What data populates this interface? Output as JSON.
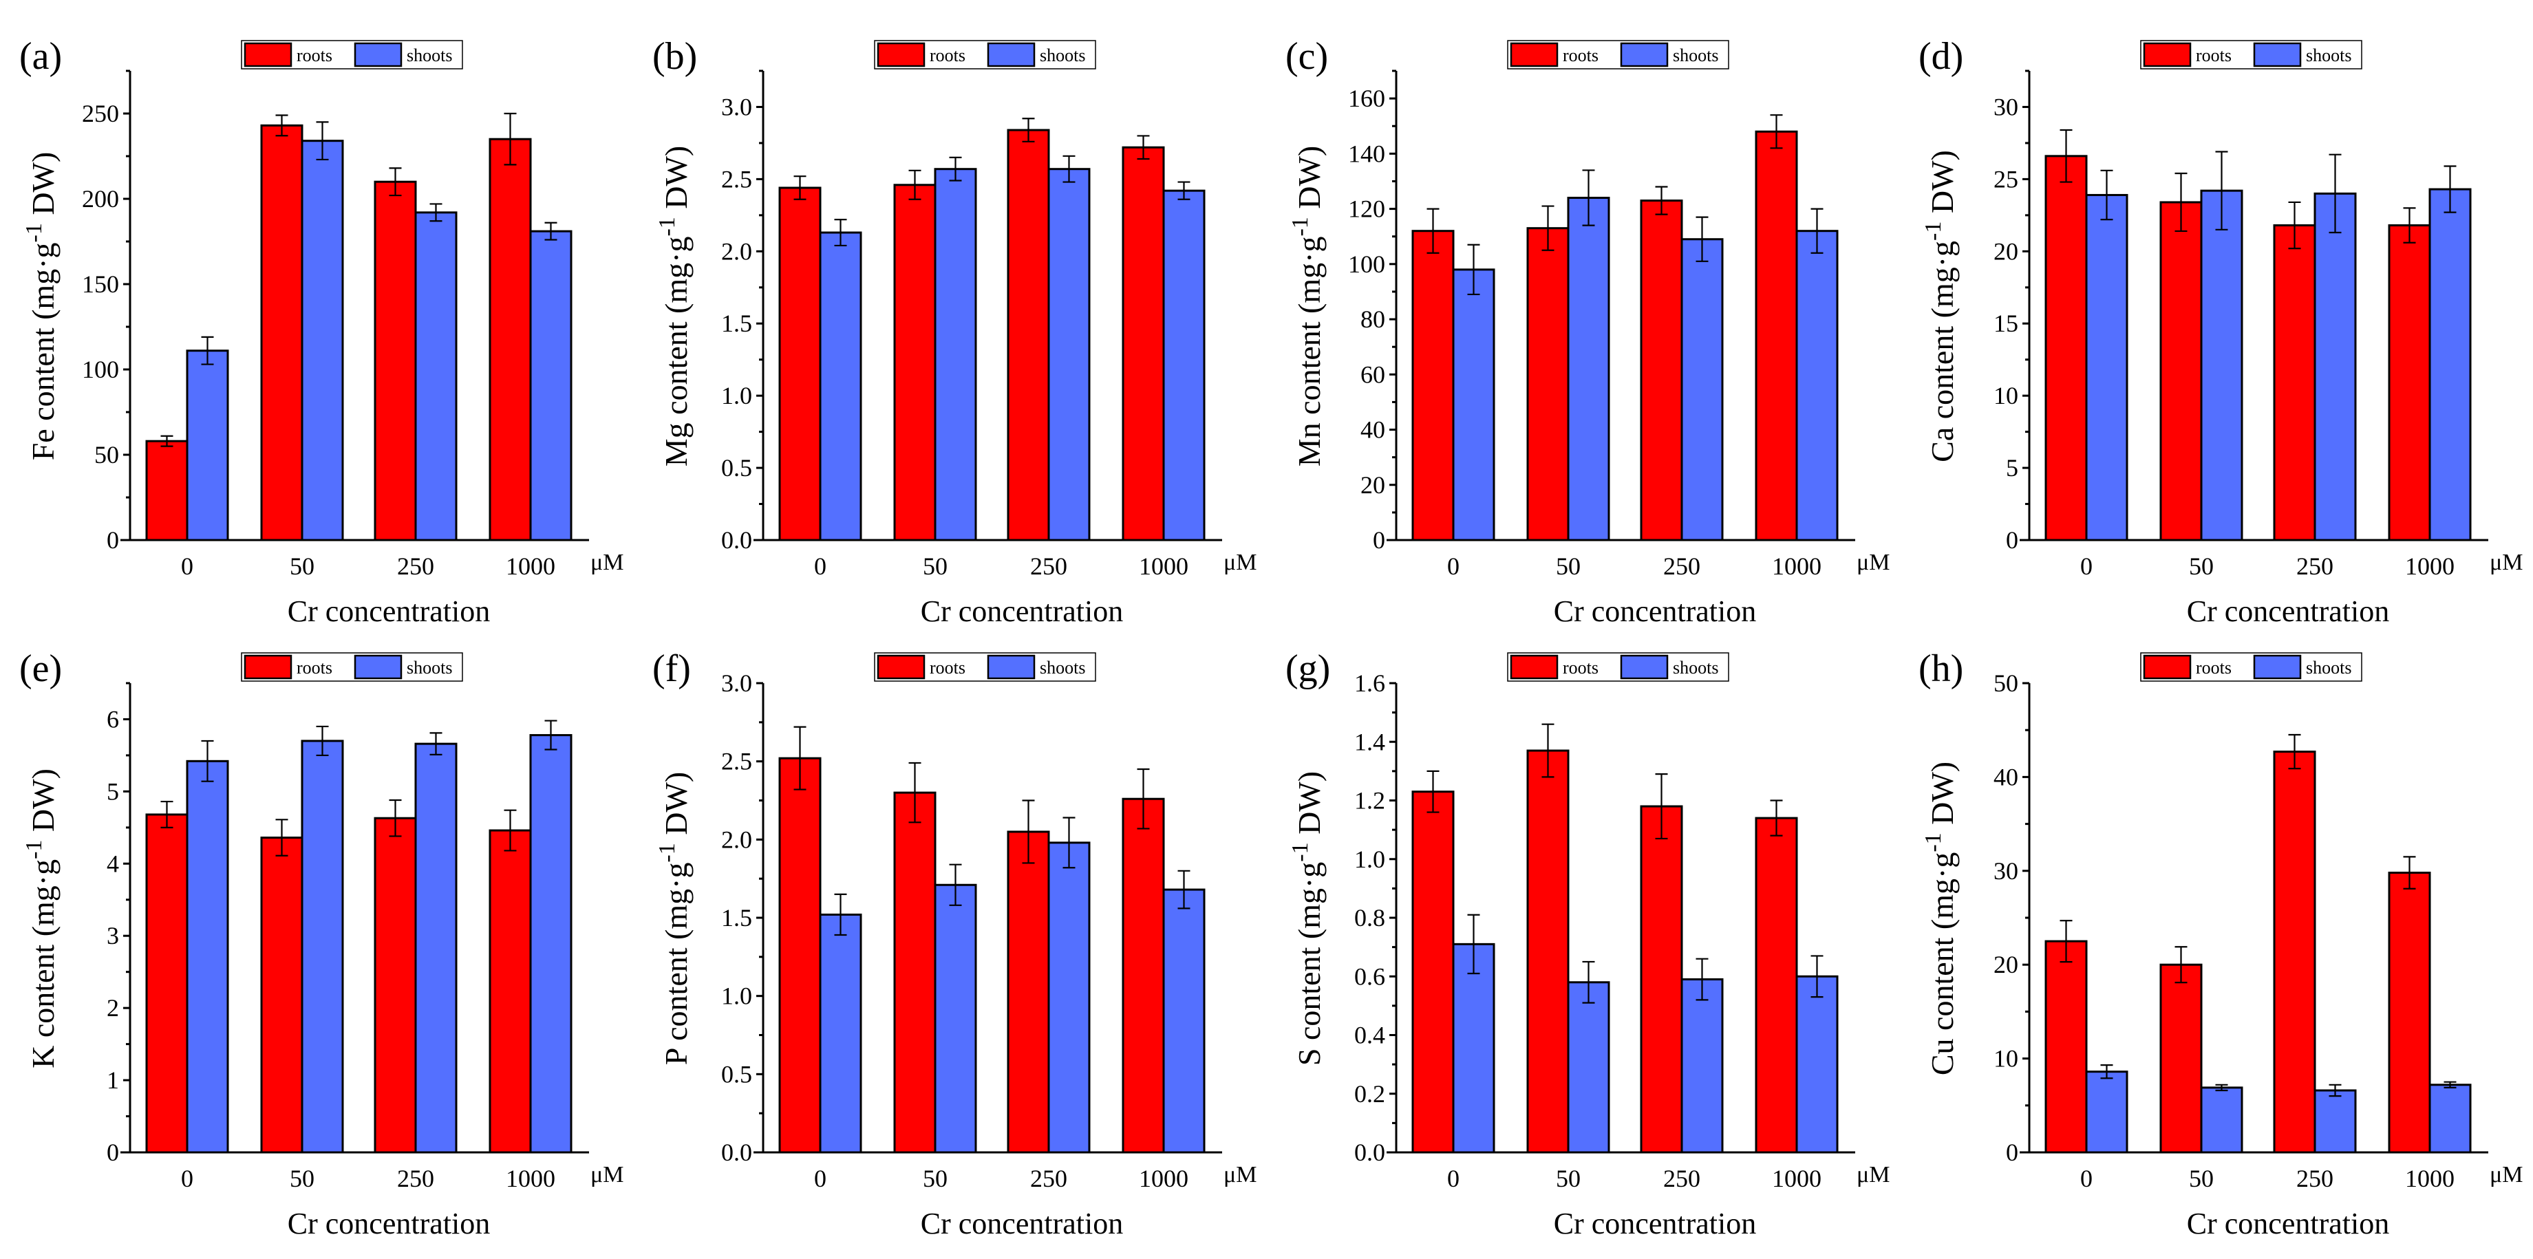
{
  "colors": {
    "roots": "#ff0000",
    "shoots": "#5470ff",
    "axis": "#000000"
  },
  "chart_data": [
    {
      "type": "bar",
      "panel_label": "(a)",
      "element": "Fe",
      "ylabel_main": "Fe content (mg·g",
      "ylabel_sup": "-1",
      "ylabel_end": " DW)",
      "xlabel": "Cr concentration",
      "x_unit": "μM",
      "categories": [
        "0",
        "50",
        "250",
        "1000"
      ],
      "ylim": [
        0,
        275
      ],
      "ytick_step": 50,
      "ytick_labels": [
        "0",
        "50",
        "100",
        "150",
        "200",
        "250"
      ],
      "legend": [
        "roots",
        "shoots"
      ],
      "legend_position": "top-center",
      "series": [
        {
          "name": "roots",
          "values": [
            58,
            243,
            210,
            235
          ],
          "errors": [
            3,
            6,
            8,
            15
          ]
        },
        {
          "name": "shoots",
          "values": [
            111,
            234,
            192,
            181
          ],
          "errors": [
            8,
            11,
            5,
            5
          ]
        }
      ]
    },
    {
      "type": "bar",
      "panel_label": "(b)",
      "element": "Mg",
      "ylabel_main": "Mg content (mg·g",
      "ylabel_sup": "-1",
      "ylabel_end": " DW)",
      "xlabel": "Cr concentration",
      "x_unit": "μM",
      "categories": [
        "0",
        "50",
        "250",
        "1000"
      ],
      "ylim": [
        0,
        3.25
      ],
      "ytick_step": 0.5,
      "ytick_labels": [
        "0.0",
        "0.5",
        "1.0",
        "1.5",
        "2.0",
        "2.5",
        "3.0"
      ],
      "legend": [
        "roots",
        "shoots"
      ],
      "legend_position": "top-center",
      "series": [
        {
          "name": "roots",
          "values": [
            2.44,
            2.46,
            2.84,
            2.72
          ],
          "errors": [
            0.08,
            0.1,
            0.08,
            0.08
          ]
        },
        {
          "name": "shoots",
          "values": [
            2.13,
            2.57,
            2.57,
            2.42
          ],
          "errors": [
            0.09,
            0.08,
            0.09,
            0.06
          ]
        }
      ]
    },
    {
      "type": "bar",
      "panel_label": "(c)",
      "element": "Mn",
      "ylabel_main": "Mn content (mg·g",
      "ylabel_sup": "-1",
      "ylabel_end": " DW)",
      "xlabel": "Cr concentration",
      "x_unit": "μM",
      "categories": [
        "0",
        "50",
        "250",
        "1000"
      ],
      "ylim": [
        0,
        170
      ],
      "ytick_step": 20,
      "ytick_labels": [
        "0",
        "20",
        "40",
        "60",
        "80",
        "100",
        "120",
        "140",
        "160"
      ],
      "legend": [
        "roots",
        "shoots"
      ],
      "legend_position": "top-center",
      "series": [
        {
          "name": "roots",
          "values": [
            112,
            113,
            123,
            148
          ],
          "errors": [
            8,
            8,
            5,
            6
          ]
        },
        {
          "name": "shoots",
          "values": [
            98,
            124,
            109,
            112
          ],
          "errors": [
            9,
            10,
            8,
            8
          ]
        }
      ]
    },
    {
      "type": "bar",
      "panel_label": "(d)",
      "element": "Ca",
      "ylabel_main": "Ca content (mg·g",
      "ylabel_sup": "-1",
      "ylabel_end": " DW)",
      "xlabel": "Cr concentration",
      "x_unit": "μM",
      "categories": [
        "0",
        "50",
        "250",
        "1000"
      ],
      "ylim": [
        0,
        32.5
      ],
      "ytick_step": 5,
      "ytick_labels": [
        "0",
        "5",
        "10",
        "15",
        "20",
        "25",
        "30"
      ],
      "legend": [
        "roots",
        "shoots"
      ],
      "legend_position": "top-center",
      "series": [
        {
          "name": "roots",
          "values": [
            26.6,
            23.4,
            21.8,
            21.8
          ],
          "errors": [
            1.8,
            2.0,
            1.6,
            1.2
          ]
        },
        {
          "name": "shoots",
          "values": [
            23.9,
            24.2,
            24.0,
            24.3
          ],
          "errors": [
            1.7,
            2.7,
            2.7,
            1.6
          ]
        }
      ]
    },
    {
      "type": "bar",
      "panel_label": "(e)",
      "element": "K",
      "ylabel_main": "K content (mg·g",
      "ylabel_sup": "-1",
      "ylabel_end": " DW)",
      "xlabel": "Cr concentration",
      "x_unit": "μM",
      "categories": [
        "0",
        "50",
        "250",
        "1000"
      ],
      "ylim": [
        0,
        6.5
      ],
      "ytick_step": 1,
      "ytick_labels": [
        "0",
        "1",
        "2",
        "3",
        "4",
        "5",
        "6"
      ],
      "legend": [
        "roots",
        "shoots"
      ],
      "legend_position": "top-center",
      "series": [
        {
          "name": "roots",
          "values": [
            4.68,
            4.36,
            4.63,
            4.46
          ],
          "errors": [
            0.18,
            0.25,
            0.25,
            0.28
          ]
        },
        {
          "name": "shoots",
          "values": [
            5.42,
            5.7,
            5.66,
            5.78
          ],
          "errors": [
            0.28,
            0.2,
            0.15,
            0.2
          ]
        }
      ]
    },
    {
      "type": "bar",
      "panel_label": "(f)",
      "element": "P",
      "ylabel_main": "P content (mg·g",
      "ylabel_sup": "-1",
      "ylabel_end": " DW)",
      "xlabel": "Cr concentration",
      "x_unit": "μM",
      "categories": [
        "0",
        "50",
        "250",
        "1000"
      ],
      "ylim": [
        0,
        3.0
      ],
      "ytick_step": 0.5,
      "ytick_labels": [
        "0.0",
        "0.5",
        "1.0",
        "1.5",
        "2.0",
        "2.5",
        "3.0"
      ],
      "legend": [
        "roots",
        "shoots"
      ],
      "legend_position": "top-center",
      "series": [
        {
          "name": "roots",
          "values": [
            2.52,
            2.3,
            2.05,
            2.26
          ],
          "errors": [
            0.2,
            0.19,
            0.2,
            0.19
          ]
        },
        {
          "name": "shoots",
          "values": [
            1.52,
            1.71,
            1.98,
            1.68
          ],
          "errors": [
            0.13,
            0.13,
            0.16,
            0.12
          ]
        }
      ]
    },
    {
      "type": "bar",
      "panel_label": "(g)",
      "element": "S",
      "ylabel_main": "S content (mg·g",
      "ylabel_sup": "-1",
      "ylabel_end": " DW)",
      "xlabel": "Cr concentration",
      "x_unit": "μM",
      "categories": [
        "0",
        "50",
        "250",
        "1000"
      ],
      "ylim": [
        0,
        1.6
      ],
      "ytick_step": 0.2,
      "ytick_labels": [
        "0.0",
        "0.2",
        "0.4",
        "0.6",
        "0.8",
        "1.0",
        "1.2",
        "1.4",
        "1.6"
      ],
      "legend": [
        "roots",
        "shoots"
      ],
      "legend_position": "top-center",
      "series": [
        {
          "name": "roots",
          "values": [
            1.23,
            1.37,
            1.18,
            1.14
          ],
          "errors": [
            0.07,
            0.09,
            0.11,
            0.06
          ]
        },
        {
          "name": "shoots",
          "values": [
            0.71,
            0.58,
            0.59,
            0.6
          ],
          "errors": [
            0.1,
            0.07,
            0.07,
            0.07
          ]
        }
      ]
    },
    {
      "type": "bar",
      "panel_label": "(h)",
      "element": "Cu",
      "ylabel_main": "Cu content (mg·g",
      "ylabel_sup": "-1",
      "ylabel_end": " DW)",
      "xlabel": "Cr concentration",
      "x_unit": "μM",
      "categories": [
        "0",
        "50",
        "250",
        "1000"
      ],
      "ylim": [
        0,
        50
      ],
      "ytick_step": 10,
      "ytick_labels": [
        "0",
        "10",
        "20",
        "30",
        "40",
        "50"
      ],
      "legend": [
        "roots",
        "shoots"
      ],
      "legend_position": "top-center",
      "series": [
        {
          "name": "roots",
          "values": [
            22.5,
            20.0,
            42.7,
            29.8
          ],
          "errors": [
            2.2,
            1.9,
            1.8,
            1.7
          ]
        },
        {
          "name": "shoots",
          "values": [
            8.6,
            6.9,
            6.6,
            7.2
          ],
          "errors": [
            0.7,
            0.3,
            0.6,
            0.3
          ]
        }
      ]
    }
  ]
}
